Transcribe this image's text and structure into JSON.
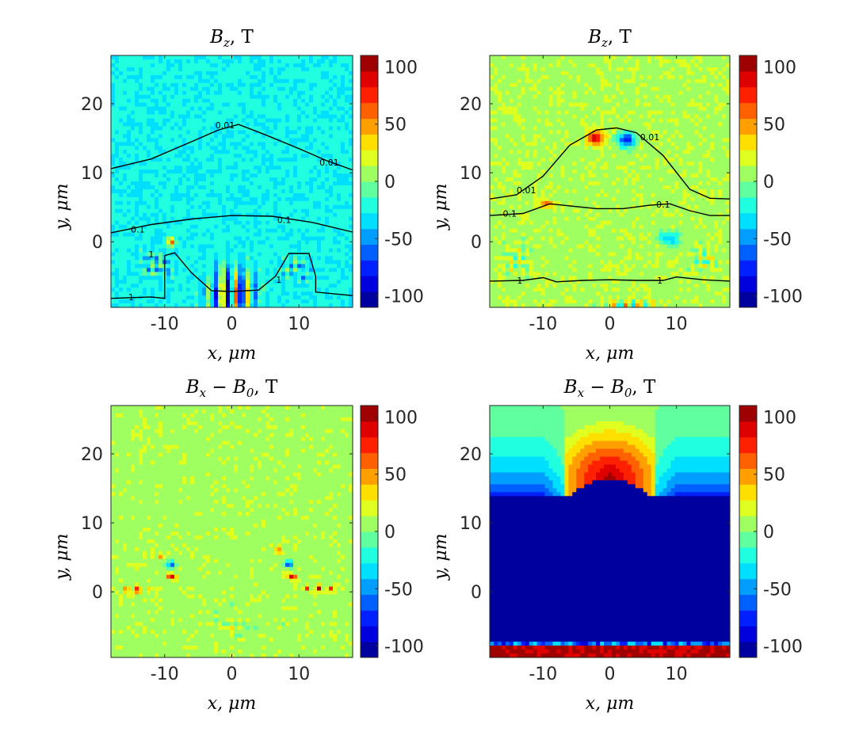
{
  "figure": {
    "colorbar_ticks": [
      100,
      50,
      0,
      -50,
      -100
    ],
    "colorbar_tick_labels": [
      "100",
      "50",
      "0",
      "-50",
      "-100"
    ]
  },
  "chart_data": [
    {
      "type": "heatmap",
      "title": "B_z, T",
      "title_parts": {
        "main": "B",
        "sub": "z",
        "unit": ", T"
      },
      "xlabel": "x, μm",
      "ylabel": "y, μm",
      "xlim": [
        -18,
        18
      ],
      "ylim": [
        -9.5,
        27
      ],
      "xticks": [
        -10,
        0,
        10
      ],
      "xtick_labels": [
        "-10",
        "0",
        "10"
      ],
      "yticks": [
        0,
        10,
        20
      ],
      "ytick_labels": [
        "0",
        "10",
        "20"
      ],
      "clim": [
        -110,
        110
      ],
      "colormap": "jet",
      "colorbar": {
        "ticks": [
          100,
          50,
          0,
          -50,
          -100
        ]
      },
      "background_value": -25,
      "contours": [
        {
          "level": "0.01",
          "points": [
            [
              -18,
              10.6
            ],
            [
              -12,
              12
            ],
            [
              -6,
              14.5
            ],
            [
              -2,
              16.2
            ],
            [
              1,
              17
            ],
            [
              5,
              15.5
            ],
            [
              10,
              13.5
            ],
            [
              14,
              11.8
            ],
            [
              18,
              10.4
            ]
          ],
          "labels": [
            {
              "text": "0.01",
              "x": -1,
              "y": 16.9
            },
            {
              "text": "0.01",
              "x": 14.5,
              "y": 11.5
            }
          ]
        },
        {
          "level": "0.1",
          "points": [
            [
              -18,
              1.3
            ],
            [
              -12,
              2.5
            ],
            [
              -6,
              3.3
            ],
            [
              0,
              3.8
            ],
            [
              6,
              3.7
            ],
            [
              12,
              2.8
            ],
            [
              18,
              1.4
            ]
          ],
          "labels": [
            {
              "text": "0.1",
              "x": -14,
              "y": 1.8
            },
            {
              "text": "0.1",
              "x": 7.8,
              "y": 3.2
            }
          ]
        },
        {
          "level": "1",
          "points": [
            [
              -18,
              -8.2
            ],
            [
              -12,
              -8
            ],
            [
              -10,
              -8.2
            ],
            [
              -10,
              -2
            ],
            [
              -8.5,
              -1.6
            ],
            [
              -6,
              -4.5
            ],
            [
              -3,
              -7.1
            ],
            [
              0,
              -7.2
            ],
            [
              4,
              -7
            ],
            [
              6.5,
              -5
            ],
            [
              8.5,
              -1.7
            ],
            [
              11.5,
              -1.7
            ],
            [
              12.5,
              -5
            ],
            [
              12.5,
              -7.3
            ],
            [
              18,
              -7.8
            ]
          ],
          "labels": [
            {
              "text": "1",
              "x": -12,
              "y": -1.8
            },
            {
              "text": "1",
              "x": -15,
              "y": -8
            },
            {
              "text": "1",
              "x": 7,
              "y": -5.5
            }
          ]
        }
      ],
      "features": [
        {
          "x": 0,
          "y": -7.5,
          "w": 8,
          "h": 9,
          "amp": 95,
          "kind": "osc_vertical"
        },
        {
          "x": -11,
          "y": -3.5,
          "w": 6,
          "h": 5,
          "amp": 55,
          "kind": "osc"
        },
        {
          "x": 9.5,
          "y": -4,
          "w": 6,
          "h": 5,
          "amp": 45,
          "kind": "osc"
        },
        {
          "x": -9,
          "y": 0,
          "w": 1.5,
          "h": 1.5,
          "amp": 95,
          "kind": "blob"
        }
      ]
    },
    {
      "type": "heatmap",
      "title": "B_z, T",
      "title_parts": {
        "main": "B",
        "sub": "z",
        "unit": ", T"
      },
      "xlabel": "x, μm",
      "ylabel": "y, μm",
      "xlim": [
        -18,
        18
      ],
      "ylim": [
        -9.5,
        27
      ],
      "xticks": [
        -10,
        0,
        10
      ],
      "xtick_labels": [
        "-10",
        "0",
        "10"
      ],
      "yticks": [
        0,
        10,
        20
      ],
      "ytick_labels": [
        "0",
        "10",
        "20"
      ],
      "clim": [
        -110,
        110
      ],
      "colormap": "jet",
      "colorbar": {
        "ticks": [
          100,
          50,
          0,
          -50,
          -100
        ]
      },
      "background_value": 10,
      "contours": [
        {
          "level": "0.01",
          "points": [
            [
              -18,
              6.2
            ],
            [
              -14,
              6.8
            ],
            [
              -10,
              9.5
            ],
            [
              -6,
              14
            ],
            [
              -2,
              16.2
            ],
            [
              1,
              16.5
            ],
            [
              4,
              15.8
            ],
            [
              8,
              12.5
            ],
            [
              12,
              7.6
            ],
            [
              15,
              6.3
            ],
            [
              18,
              6.2
            ]
          ],
          "labels": [
            {
              "text": "0.01",
              "x": -12.5,
              "y": 7.5
            },
            {
              "text": "0.01",
              "x": 6,
              "y": 15.2
            }
          ]
        },
        {
          "level": "0.1",
          "points": [
            [
              -18,
              3.8
            ],
            [
              -13,
              4.1
            ],
            [
              -9,
              5.5
            ],
            [
              -6,
              5.2
            ],
            [
              -2,
              4.8
            ],
            [
              2,
              4.8
            ],
            [
              6,
              5.3
            ],
            [
              9,
              5.5
            ],
            [
              12,
              4.5
            ],
            [
              15,
              3.8
            ],
            [
              18,
              3.8
            ]
          ],
          "labels": [
            {
              "text": "0.1",
              "x": -15,
              "y": 4.1
            },
            {
              "text": "0.1",
              "x": 8,
              "y": 5.4
            }
          ]
        },
        {
          "level": "1",
          "points": [
            [
              -18,
              -5.7
            ],
            [
              -13,
              -5.6
            ],
            [
              -10,
              -5.2
            ],
            [
              -8,
              -5.8
            ],
            [
              -4,
              -5.6
            ],
            [
              0,
              -5.5
            ],
            [
              4,
              -5.6
            ],
            [
              8,
              -5.6
            ],
            [
              10,
              -5.1
            ],
            [
              14,
              -5.5
            ],
            [
              18,
              -5.7
            ]
          ],
          "labels": [
            {
              "text": "1",
              "x": -13.5,
              "y": -5.6
            },
            {
              "text": "1",
              "x": 7.5,
              "y": -5.6
            }
          ]
        }
      ],
      "features": [
        {
          "x": -2.2,
          "y": 15,
          "w": 3,
          "h": 2.5,
          "amp": 85,
          "kind": "blob"
        },
        {
          "x": 2.5,
          "y": 14.8,
          "w": 3,
          "h": 2.5,
          "amp": -95,
          "kind": "blob"
        },
        {
          "x": -9.5,
          "y": 5.5,
          "w": 3,
          "h": 1.5,
          "amp": 45,
          "kind": "blob"
        },
        {
          "x": -14,
          "y": -2.5,
          "w": 5,
          "h": 5,
          "amp": 45,
          "kind": "osc"
        },
        {
          "x": 14,
          "y": -2.5,
          "w": 5,
          "h": 5,
          "amp": 45,
          "kind": "osc"
        },
        {
          "x": 9,
          "y": 0.5,
          "w": 4,
          "h": 2.5,
          "amp": -45,
          "kind": "blob"
        },
        {
          "x": 3,
          "y": -9,
          "w": 10,
          "h": 0.8,
          "amp": 85,
          "kind": "osc_vertical"
        }
      ]
    },
    {
      "type": "heatmap",
      "title": "B_x − B_0, T",
      "title_parts": {
        "main": "B",
        "sub": "x",
        "rest_main": " − B",
        "rest_sub": "0",
        "unit": ", T"
      },
      "xlabel": "x, μm",
      "ylabel": "y, μm",
      "xlim": [
        -18,
        18
      ],
      "ylim": [
        -9.5,
        27
      ],
      "xticks": [
        -10,
        0,
        10
      ],
      "xtick_labels": [
        "-10",
        "0",
        "10"
      ],
      "yticks": [
        0,
        10,
        20
      ],
      "ytick_labels": [
        "0",
        "10",
        "20"
      ],
      "clim": [
        -110,
        110
      ],
      "colormap": "jet",
      "colorbar": {
        "ticks": [
          100,
          50,
          0,
          -50,
          -100
        ]
      },
      "background_value": 8,
      "contours": [],
      "features": [
        {
          "x": -9,
          "y": 4,
          "w": 1.4,
          "h": 1.2,
          "amp": -90,
          "kind": "blob"
        },
        {
          "x": -9,
          "y": 2.2,
          "w": 1.4,
          "h": 1.0,
          "amp": 95,
          "kind": "blob"
        },
        {
          "x": -10.5,
          "y": 5.2,
          "w": 1.2,
          "h": 1.0,
          "amp": 40,
          "kind": "blob"
        },
        {
          "x": -14.5,
          "y": 0.3,
          "w": 6,
          "h": 1.0,
          "amp": 95,
          "kind": "dots"
        },
        {
          "x": 8.5,
          "y": 4,
          "w": 1.4,
          "h": 1.2,
          "amp": -90,
          "kind": "blob"
        },
        {
          "x": 9,
          "y": 2.2,
          "w": 1.4,
          "h": 1.0,
          "amp": 95,
          "kind": "blob"
        },
        {
          "x": 7,
          "y": 6,
          "w": 1.3,
          "h": 1.2,
          "amp": 45,
          "kind": "blob"
        },
        {
          "x": 13,
          "y": 0.5,
          "w": 6,
          "h": 1.0,
          "amp": 95,
          "kind": "dots"
        },
        {
          "x": 0,
          "y": -5,
          "w": 16,
          "h": 4,
          "amp": 18,
          "kind": "osc"
        }
      ]
    },
    {
      "type": "heatmap",
      "title": "B_x − B_0, T",
      "title_parts": {
        "main": "B",
        "sub": "x",
        "rest_main": " − B",
        "rest_sub": "0",
        "unit": ", T"
      },
      "xlabel": "x, μm",
      "ylabel": "y, μm",
      "xlim": [
        -18,
        18
      ],
      "ylim": [
        -9.5,
        27
      ],
      "xticks": [
        -10,
        0,
        10
      ],
      "xtick_labels": [
        "-10",
        "0",
        "10"
      ],
      "yticks": [
        0,
        10,
        20
      ],
      "ytick_labels": [
        "0",
        "10",
        "20"
      ],
      "clim": [
        -110,
        110
      ],
      "colormap": "jet",
      "colorbar": {
        "ticks": [
          100,
          50,
          0,
          -50,
          -100
        ]
      },
      "background_value": 0,
      "contours": [],
      "features": [
        {
          "kind": "dome_field",
          "x": 0,
          "y": 16.3,
          "w": 10,
          "h": 10.7,
          "amp": 105
        },
        {
          "kind": "bottom_red",
          "x": 0,
          "y": -8.5,
          "w": 36,
          "h": 2,
          "amp": 105
        }
      ]
    }
  ]
}
